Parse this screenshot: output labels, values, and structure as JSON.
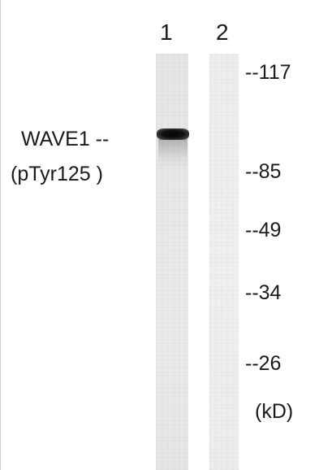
{
  "lanes": [
    {
      "number": "1"
    },
    {
      "number": "2"
    }
  ],
  "protein": {
    "name": "WAVE1 --",
    "modification": "(pTyr125 )"
  },
  "markers": [
    "--117",
    "--85",
    "--49",
    "--34",
    "--26"
  ],
  "unit": "(kD)"
}
